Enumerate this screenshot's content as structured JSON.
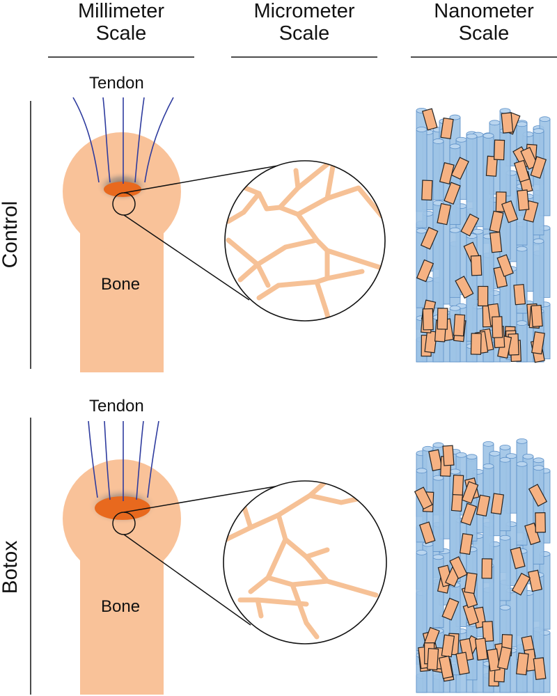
{
  "columns": [
    {
      "line1": "Millimeter",
      "line2": "Scale"
    },
    {
      "line1": "Micrometer",
      "line2": "Scale"
    },
    {
      "line1": "Nanometer",
      "line2": "Scale"
    }
  ],
  "rows": [
    {
      "label": "Control",
      "tendon": "Tendon",
      "bone": "Bone"
    },
    {
      "label": "Botox",
      "tendon": "Tendon",
      "bone": "Bone"
    }
  ],
  "colors": {
    "bone": "#f9c299",
    "enthesis": "#e8691e",
    "tendon_fiber": "#2e3b9e",
    "collagen_fibril": "#9dc3e6",
    "fibril_stroke": "#5b8fc7",
    "mineral": "#f6b283",
    "network": "#f6c196"
  }
}
